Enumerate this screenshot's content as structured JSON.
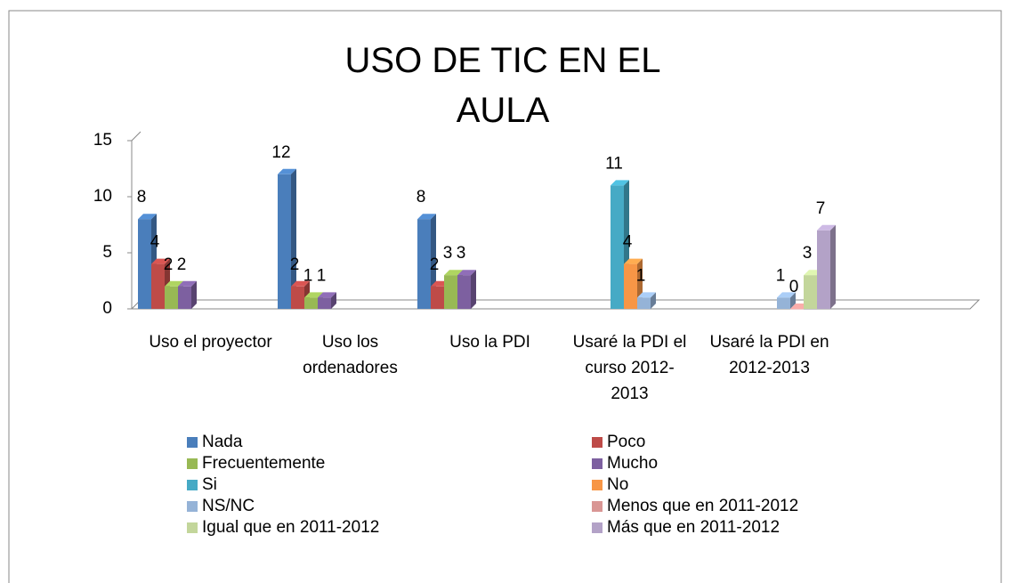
{
  "chart_data": {
    "type": "bar",
    "title": "USO DE TIC EN EL AULA",
    "categories": [
      "Uso el proyector",
      "Uso los ordenadores",
      "Uso la PDI",
      "Usaré la PDI el curso 2012-2013",
      "Usaré la PDI en 2012-2013"
    ],
    "series": [
      {
        "name": "Nada",
        "color": "#4a7ebb",
        "values": [
          8,
          12,
          8,
          null,
          null
        ]
      },
      {
        "name": "Poco",
        "color": "#be4b48",
        "values": [
          4,
          2,
          2,
          null,
          null
        ]
      },
      {
        "name": "Frecuentemente",
        "color": "#98b954",
        "values": [
          2,
          1,
          3,
          null,
          null
        ]
      },
      {
        "name": "Mucho",
        "color": "#7d60a0",
        "values": [
          2,
          1,
          3,
          null,
          null
        ]
      },
      {
        "name": "Si",
        "color": "#46aac5",
        "values": [
          null,
          null,
          null,
          11,
          null
        ]
      },
      {
        "name": "No",
        "color": "#f79646",
        "values": [
          null,
          null,
          null,
          4,
          null
        ]
      },
      {
        "name": "NS/NC",
        "color": "#95b3d7",
        "values": [
          null,
          null,
          null,
          1,
          1
        ]
      },
      {
        "name": "Menos que en 2011-2012",
        "color": "#d99694",
        "values": [
          null,
          null,
          null,
          null,
          0
        ]
      },
      {
        "name": "Igual que en 2011-2012",
        "color": "#c3d69b",
        "values": [
          null,
          null,
          null,
          null,
          3
        ]
      },
      {
        "name": "Más que en 2011-2012",
        "color": "#b3a2c7",
        "values": [
          null,
          null,
          null,
          null,
          7
        ]
      }
    ],
    "ylim": [
      0,
      15
    ],
    "yticks": [
      0,
      5,
      10,
      15
    ],
    "legend": "bottom"
  }
}
